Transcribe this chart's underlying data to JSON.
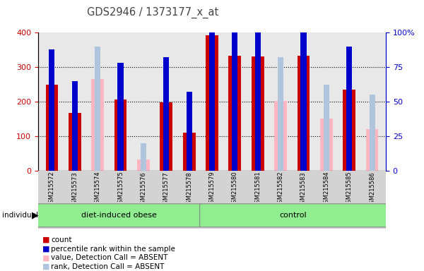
{
  "title": "GDS2946 / 1373177_x_at",
  "samples": [
    "GSM215572",
    "GSM215573",
    "GSM215574",
    "GSM215575",
    "GSM215576",
    "GSM215577",
    "GSM215578",
    "GSM215579",
    "GSM215580",
    "GSM215581",
    "GSM215582",
    "GSM215583",
    "GSM215584",
    "GSM215585",
    "GSM215586"
  ],
  "group1_name": "diet-induced obese",
  "group2_name": "control",
  "group1_count": 7,
  "red_values": [
    248,
    168,
    0,
    207,
    0,
    197,
    110,
    393,
    332,
    330,
    0,
    332,
    0,
    234,
    0
  ],
  "blue_values": [
    88,
    65,
    0,
    78,
    0,
    82,
    57,
    112,
    110,
    105,
    0,
    100,
    0,
    90,
    0
  ],
  "pink_values": [
    0,
    0,
    265,
    0,
    32,
    0,
    0,
    0,
    0,
    0,
    202,
    0,
    150,
    0,
    120
  ],
  "lb_values": [
    0,
    0,
    90,
    0,
    20,
    0,
    0,
    0,
    0,
    0,
    82,
    0,
    62,
    0,
    55
  ],
  "ylim_left": [
    0,
    400
  ],
  "ylim_right": [
    0,
    100
  ],
  "yticks_left": [
    0,
    100,
    200,
    300,
    400
  ],
  "yticks_right": [
    0,
    25,
    50,
    75,
    100
  ],
  "right_tick_labels": [
    "0",
    "25",
    "50",
    "75",
    "100%"
  ],
  "bar_width": 0.55,
  "blue_bar_width": 0.25,
  "plot_bg_color": "#e8e8e8",
  "gray_bg": "#d3d3d3",
  "green_color": "#90ee90",
  "left_axis_color": "#cc0000",
  "right_axis_color": "#0000cc",
  "title_color": "#444444",
  "legend_labels": [
    "count",
    "percentile rank within the sample",
    "value, Detection Call = ABSENT",
    "rank, Detection Call = ABSENT"
  ],
  "legend_colors": [
    "#cc0000",
    "#0000cc",
    "#ffb6c1",
    "#b0c4de"
  ]
}
